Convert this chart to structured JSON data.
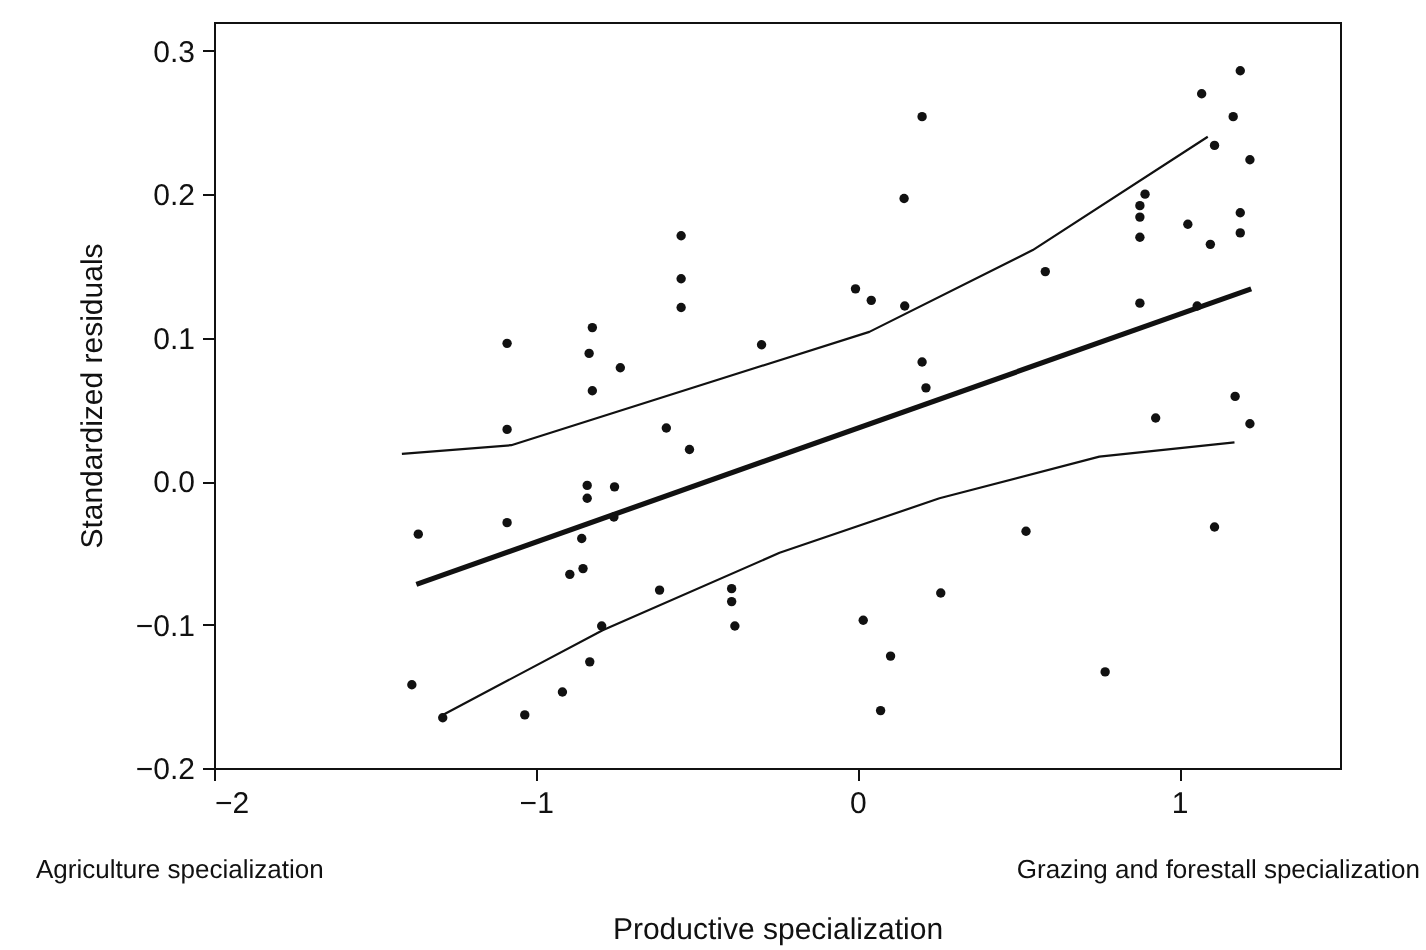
{
  "chart_data": {
    "type": "scatter",
    "xlabel": "Productive specialization",
    "ylabel": "Standardized residuals",
    "annotations": [
      "Agriculture specialization",
      "Grazing and forestall specialization"
    ],
    "xlim": [
      -2,
      1.5
    ],
    "xticks": [
      -2,
      -1,
      0,
      1
    ],
    "ylim": [
      -0.2,
      0.32
    ],
    "yticks": [
      -0.2,
      -0.1,
      {
        "value": 0,
        "label": "0.0"
      },
      0.1,
      0.2,
      0.3
    ],
    "grid": false,
    "series": [
      {
        "color": "#111111",
        "marker": "circle",
        "x": [
          -0.548,
          -0.548,
          -0.548,
          -1.089,
          -0.298,
          -0.824,
          -0.834,
          -0.737,
          -0.824,
          -1.089,
          -0.594,
          -0.522,
          -0.84,
          -0.84,
          -0.755,
          -0.757,
          -1.089,
          -1.365,
          -0.857,
          -0.894,
          -0.853,
          -0.615,
          -0.391,
          -0.391,
          -1.385,
          -1.289,
          -1.034,
          -0.917,
          -0.832,
          -0.795,
          -0.381,
          0.018,
          0.103,
          0.072,
          0.259,
          0.77,
          1.19,
          1.07,
          1.168,
          0.201,
          1.11,
          1.22,
          0.145,
          0.894,
          0.878,
          0.878,
          1.027,
          1.19,
          0.878,
          1.19,
          1.097,
          0.584,
          -0.006,
          0.043,
          0.147,
          0.878,
          1.056,
          0.201,
          0.213,
          1.174,
          0.927,
          1.22,
          0.524,
          1.11
        ],
        "values": [
          0.171,
          0.141,
          0.121,
          0.096,
          0.095,
          0.107,
          0.089,
          0.079,
          0.063,
          0.036,
          0.037,
          0.022,
          -0.003,
          -0.012,
          -0.004,
          -0.025,
          -0.029,
          -0.037,
          -0.04,
          -0.065,
          -0.061,
          -0.076,
          -0.075,
          -0.084,
          -0.142,
          -0.165,
          -0.163,
          -0.147,
          -0.126,
          -0.101,
          -0.101,
          -0.097,
          -0.122,
          -0.16,
          -0.078,
          -0.133,
          0.286,
          0.27,
          0.254,
          0.254,
          0.234,
          0.224,
          0.197,
          0.2,
          0.192,
          0.184,
          0.179,
          0.187,
          0.17,
          0.173,
          0.165,
          0.146,
          0.134,
          0.126,
          0.122,
          0.124,
          0.122,
          0.083,
          0.065,
          0.059,
          0.044,
          0.04,
          -0.035,
          -0.032
        ]
      },
      {
        "type": "line",
        "color": "#111111",
        "x": [
          -1.371,
          1.224
        ],
        "values": [
          -0.072,
          0.134
        ]
      },
      {
        "type": "line",
        "color": "#111111",
        "x": [
          -1.416,
          -1.076,
          0.037,
          0.545,
          1.089
        ],
        "values": [
          0.019,
          0.025,
          0.104,
          0.161,
          0.24
        ]
      },
      {
        "type": "line",
        "color": "#111111",
        "x": [
          -1.289,
          -0.792,
          -0.242,
          0.255,
          0.752,
          1.172
        ],
        "values": [
          -0.163,
          -0.104,
          -0.05,
          -0.012,
          0.017,
          0.027
        ]
      }
    ]
  }
}
